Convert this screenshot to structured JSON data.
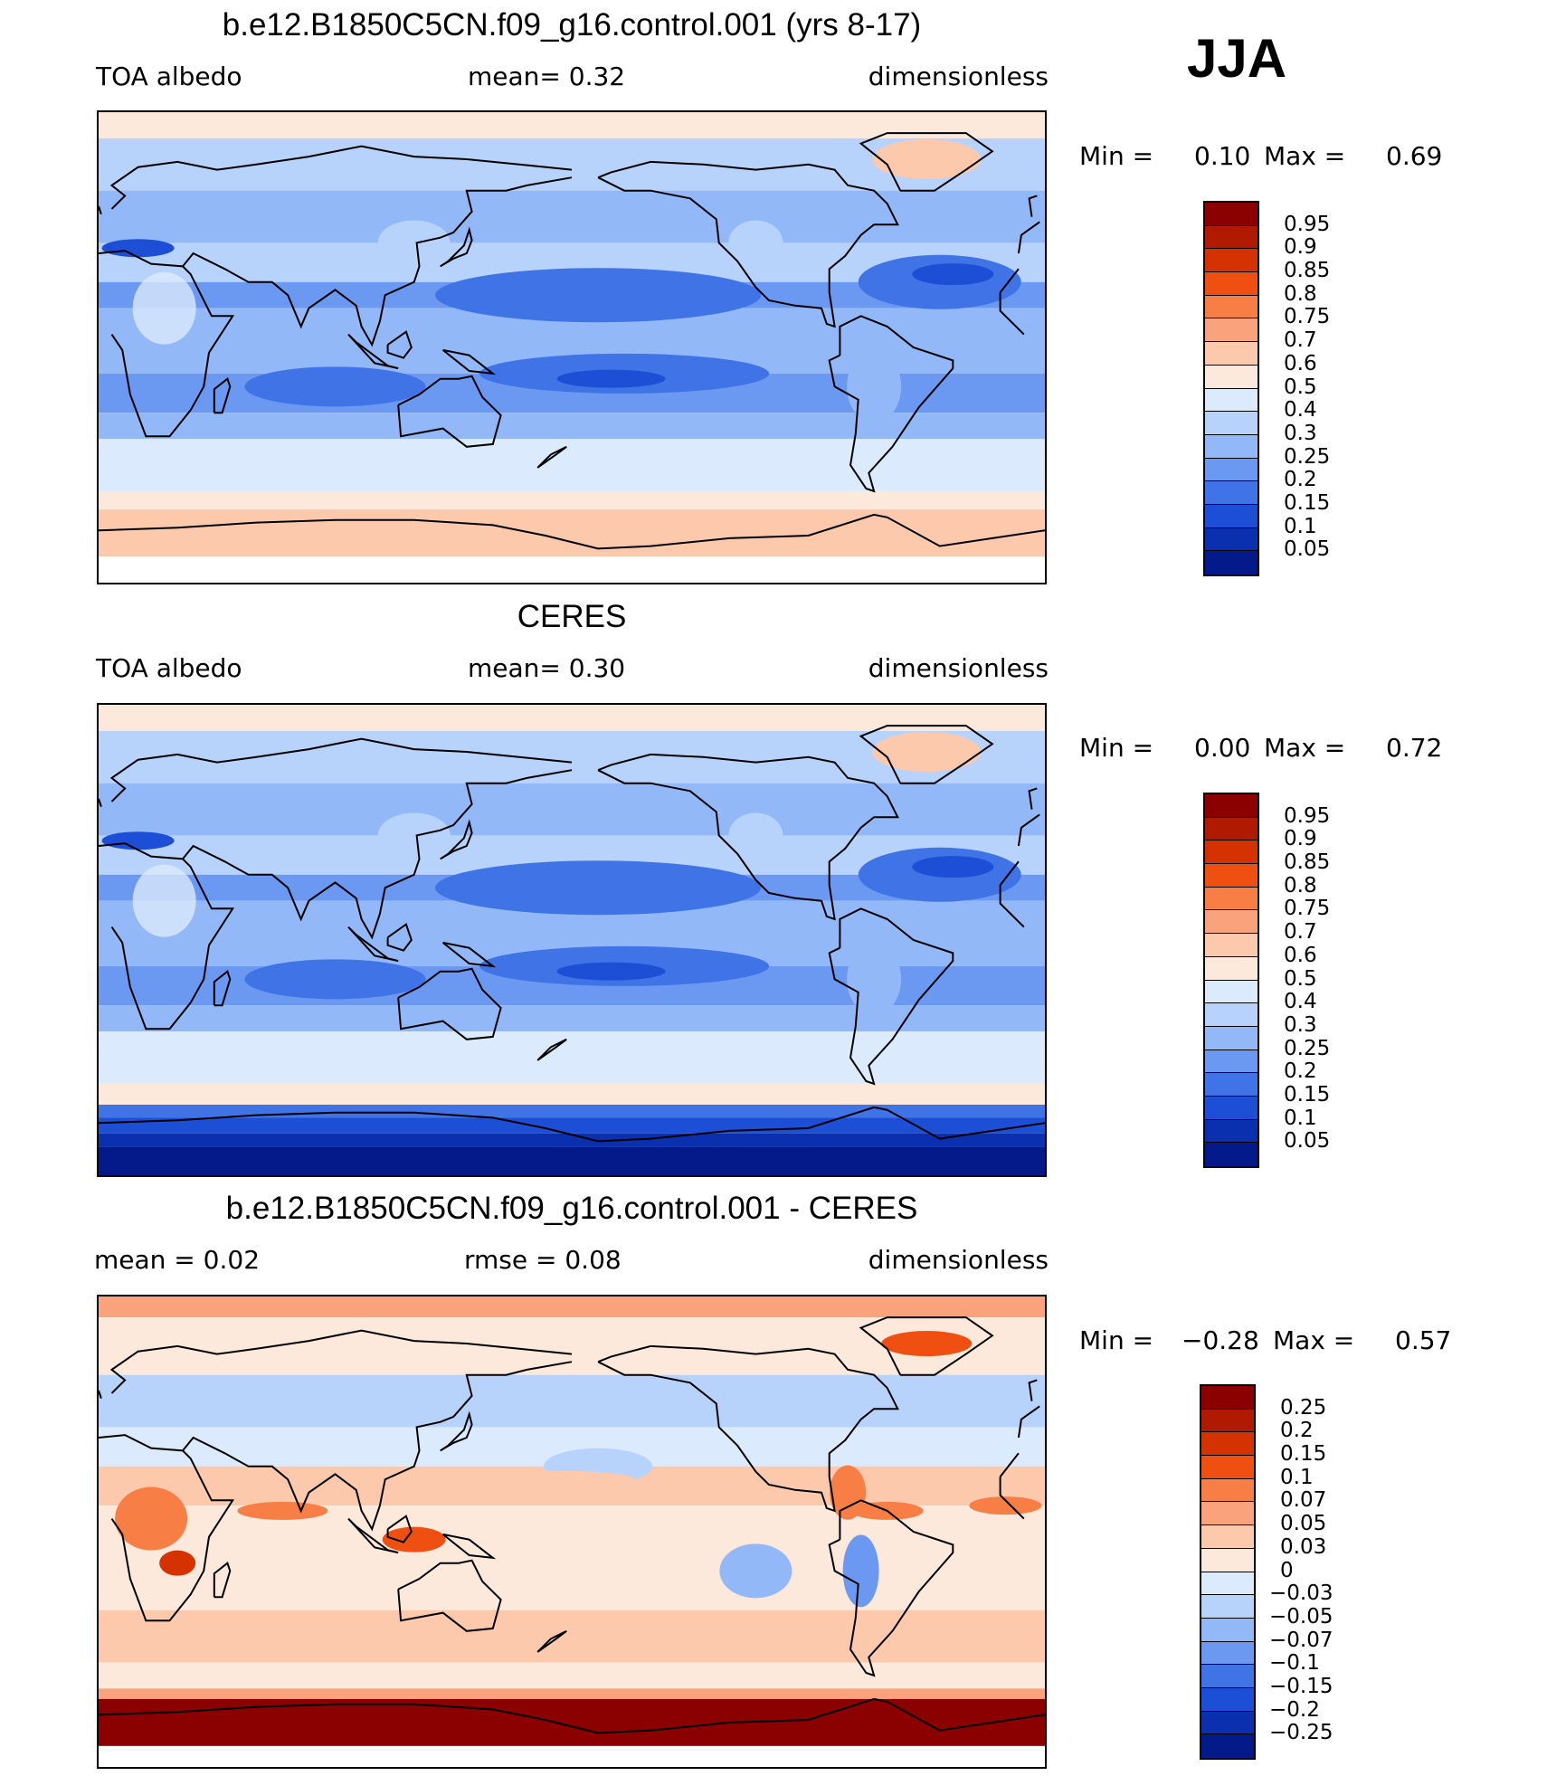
{
  "season": "JJA",
  "panels": [
    {
      "title": "b.e12.B1850C5CN.f09_g16.control.001 (yrs 8-17)",
      "left": "TOA albedo",
      "mid": "mean=    0.32",
      "right": "dimensionless",
      "min_label": "Min  =",
      "min_value": "0.10",
      "max_label": "Max  =",
      "max_value": "0.69",
      "scheme": "albedo"
    },
    {
      "title": "CERES",
      "left": "TOA albedo",
      "mid": "mean=    0.30",
      "right": "dimensionless",
      "min_label": "Min  =",
      "min_value": "0.00",
      "max_label": "Max  =",
      "max_value": "0.72",
      "scheme": "albedo"
    },
    {
      "title": "b.e12.B1850C5CN.f09_g16.control.001 - CERES",
      "left": "mean  =    0.02",
      "mid": "rmse  =    0.08",
      "right": "dimensionless",
      "min_label": "Min  =",
      "min_value": "−0.28",
      "max_label": "Max  =",
      "max_value": "0.57",
      "scheme": "diff"
    }
  ],
  "colorbars": {
    "albedo": {
      "labels": [
        "0.95",
        "0.9",
        "0.85",
        "0.8",
        "0.75",
        "0.7",
        "0.6",
        "0.5",
        "0.4",
        "0.3",
        "0.25",
        "0.2",
        "0.15",
        "0.1",
        "0.05"
      ],
      "colors": [
        "#8b0000",
        "#b01a00",
        "#d43200",
        "#ef4f10",
        "#f77e45",
        "#faa27c",
        "#fcc9ad",
        "#fde9dc",
        "#dbeafc",
        "#b8d3fb",
        "#92b8f7",
        "#6b98f0",
        "#3f73e6",
        "#1d4fd6",
        "#0a30b0",
        "#041a8a"
      ]
    },
    "diff": {
      "labels": [
        "0.25",
        "0.2",
        "0.15",
        "0.1",
        "0.07",
        "0.05",
        "0.03",
        "0",
        "−0.03",
        "−0.05",
        "−0.07",
        "−0.1",
        "−0.15",
        "−0.2",
        "−0.25"
      ],
      "colors": [
        "#8b0000",
        "#b01a00",
        "#d43200",
        "#ef4f10",
        "#f77e45",
        "#faa27c",
        "#fcc9ad",
        "#fde9dc",
        "#dbeafc",
        "#b8d3fb",
        "#92b8f7",
        "#6b98f0",
        "#3f73e6",
        "#1d4fd6",
        "#0a30b0",
        "#041a8a"
      ]
    }
  }
}
